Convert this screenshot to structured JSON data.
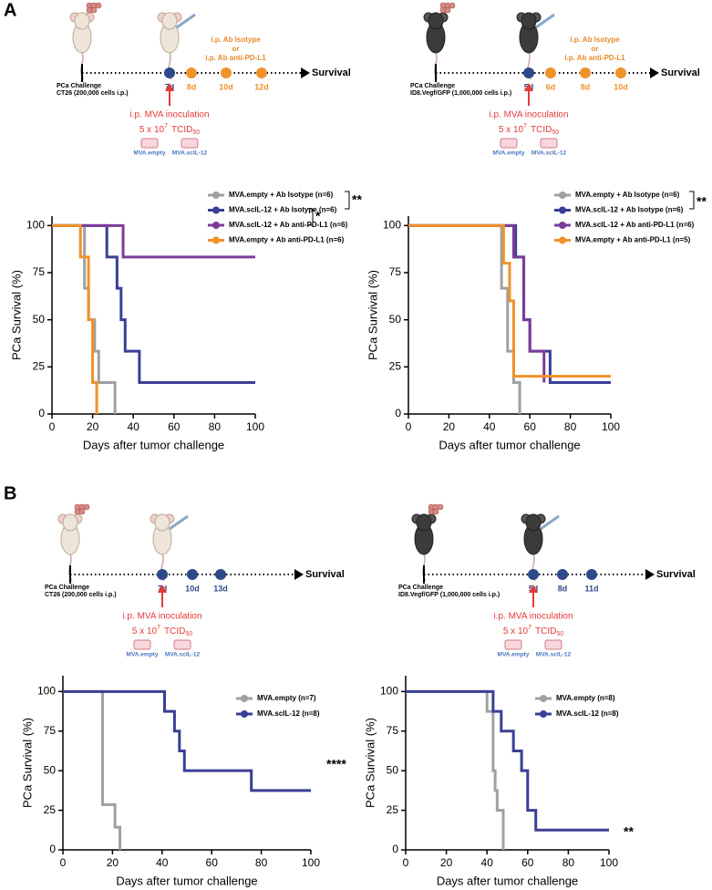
{
  "panels": [
    "A",
    "B"
  ],
  "diagrams": [
    {
      "challenge": [
        "PCa Challenge",
        "CT26 (200,000 cells i.p.)"
      ],
      "end": "Survival",
      "timepoints": [
        {
          "label": "7d",
          "color": "#2e4a8a"
        },
        {
          "label": "8d",
          "color": "#f0922b"
        },
        {
          "label": "10d",
          "color": "#f0922b"
        },
        {
          "label": "12d",
          "color": "#f0922b"
        }
      ],
      "treatment": [
        "i.p. Ab Isotype",
        "or",
        "i.p. Ab anti-PD-L1"
      ],
      "inoculation": {
        "title": "i.p. MVA inoculation",
        "dose": "5 x 10",
        "exp": "7",
        "unit": "TCID",
        "sub": "50"
      },
      "vectors": [
        "MVA.empty",
        "MVA.scIL-12"
      ]
    },
    {
      "challenge": [
        "PCa Challenge",
        "ID8.Vegf/GFP (1,000,000 cells i.p.)"
      ],
      "end": "Survival",
      "timepoints": [
        {
          "label": "5d",
          "color": "#2e4a8a"
        },
        {
          "label": "6d",
          "color": "#f0922b"
        },
        {
          "label": "8d",
          "color": "#f0922b"
        },
        {
          "label": "10d",
          "color": "#f0922b"
        }
      ],
      "treatment": [
        "i.p. Ab Isotype",
        "or",
        "i.p. Ab anti-PD-L1"
      ],
      "inoculation": {
        "title": "i.p. MVA inoculation",
        "dose": "5 x 10",
        "exp": "7",
        "unit": "TCID",
        "sub": "50"
      },
      "vectors": [
        "MVA.empty",
        "MVA.scIL-12"
      ]
    },
    {
      "challenge": [
        "PCa Challenge",
        "CT26 (200,000 cells i.p.)"
      ],
      "end": "Survival",
      "timepoints": [
        {
          "label": "7d",
          "color": "#2e4a8a"
        },
        {
          "label": "10d",
          "color": "#2e4a8a"
        },
        {
          "label": "13d",
          "color": "#2e4a8a"
        }
      ],
      "inoculation": {
        "title": "i.p. MVA inoculation",
        "dose": "5 x 10",
        "exp": "7",
        "unit": "TCID",
        "sub": "50"
      },
      "vectors": [
        "MVA.empty",
        "MVA.scIL-12"
      ]
    },
    {
      "challenge": [
        "PCa Challenge",
        "ID8.Vegf/GFP (1,000,000 cells i.p.)"
      ],
      "end": "Survival",
      "timepoints": [
        {
          "label": "5d",
          "color": "#2e4a8a"
        },
        {
          "label": "8d",
          "color": "#2e4a8a"
        },
        {
          "label": "11d",
          "color": "#2e4a8a"
        }
      ],
      "inoculation": {
        "title": "i.p. MVA inoculation",
        "dose": "5 x 10",
        "exp": "7",
        "unit": "TCID",
        "sub": "50"
      },
      "vectors": [
        "MVA.empty",
        "MVA.scIL-12"
      ]
    }
  ],
  "chart_data": [
    {
      "type": "step",
      "x_label": "Days after tumor challenge",
      "y_label": "PCa Survival (%)",
      "xlim": [
        0,
        100
      ],
      "xticks": [
        0,
        20,
        40,
        60,
        80,
        100
      ],
      "ylim": [
        0,
        105
      ],
      "yticks": [
        0,
        25,
        50,
        75,
        100
      ],
      "annotations": [
        "**",
        "*"
      ],
      "series": [
        {
          "name": "MVA.empty + Ab Isotype (n=6)",
          "color": "#a0a0a0",
          "x": [
            0,
            16,
            18,
            21,
            23,
            31
          ],
          "values": [
            100,
            66.7,
            50,
            33.3,
            16.7,
            0
          ]
        },
        {
          "name": "MVA.scIL-12 + Ab Isotype (n=6)",
          "color": "#3a3f96",
          "x": [
            0,
            27,
            32,
            34,
            36,
            43,
            100
          ],
          "values": [
            100,
            83.3,
            66.7,
            50,
            33.3,
            16.7,
            16.7
          ]
        },
        {
          "name": "MVA.scIL-12 + Ab anti-PD-L1 (n=6)",
          "color": "#7b3c98",
          "x": [
            0,
            35,
            100
          ],
          "values": [
            100,
            83.3,
            83.3
          ]
        },
        {
          "name": "MVA.empty + Ab anti-PD-L1  (n=6)",
          "color": "#f0922b",
          "x": [
            0,
            14,
            18,
            20,
            22
          ],
          "values": [
            100,
            83.3,
            50,
            16.7,
            0
          ]
        }
      ]
    },
    {
      "type": "step",
      "x_label": "Days after tumor challenge",
      "y_label": "PCa Survival (%)",
      "xlim": [
        0,
        100
      ],
      "xticks": [
        0,
        20,
        40,
        60,
        80,
        100
      ],
      "ylim": [
        0,
        105
      ],
      "yticks": [
        0,
        25,
        50,
        75,
        100
      ],
      "annotations": [
        "**"
      ],
      "series": [
        {
          "name": "MVA.empty + Ab Isotype (n=6)",
          "color": "#a0a0a0",
          "x": [
            0,
            46,
            49,
            52,
            55
          ],
          "values": [
            100,
            66.7,
            33.3,
            16.7,
            0
          ]
        },
        {
          "name": "MVA.scIL-12 + Ab Isotype (n=6)",
          "color": "#3a3f96",
          "x": [
            0,
            53,
            57,
            60,
            70,
            100
          ],
          "values": [
            100,
            83.3,
            50,
            33.3,
            16.7,
            16.7
          ]
        },
        {
          "name": "MVA.scIL-12 + Ab anti-PD-L1 (n=6)",
          "color": "#7b3c98",
          "x": [
            0,
            52,
            57,
            60,
            67
          ],
          "values": [
            100,
            83.3,
            50,
            33.3,
            16.7
          ]
        },
        {
          "name": "MVA.empty + Ab anti-PD-L1  (n=5)",
          "color": "#f0922b",
          "x": [
            0,
            47,
            50,
            52,
            100
          ],
          "values": [
            100,
            80,
            60,
            20,
            20
          ]
        }
      ]
    },
    {
      "type": "step",
      "x_label": "Days after tumor challenge",
      "y_label": "PCa Survival (%)",
      "xlim": [
        0,
        100
      ],
      "xticks": [
        0,
        20,
        40,
        60,
        80,
        100
      ],
      "ylim": [
        0,
        110
      ],
      "yticks": [
        0,
        25,
        50,
        75,
        100
      ],
      "annotations": [
        "****"
      ],
      "series": [
        {
          "name": "MVA.empty (n=7)",
          "color": "#a0a0a0",
          "x": [
            0,
            16,
            21,
            23
          ],
          "values": [
            100,
            28.6,
            14.3,
            0
          ]
        },
        {
          "name": "MVA.scIL-12 (n=8)",
          "color": "#3a3f96",
          "x": [
            0,
            41,
            45,
            47,
            49,
            76,
            100
          ],
          "values": [
            100,
            87.5,
            75,
            62.5,
            50,
            37.5,
            37.5
          ]
        }
      ]
    },
    {
      "type": "step",
      "x_label": "Days after tumor challenge",
      "y_label": "PCa Survival (%)",
      "xlim": [
        0,
        100
      ],
      "xticks": [
        0,
        20,
        40,
        60,
        80,
        100
      ],
      "ylim": [
        0,
        110
      ],
      "yticks": [
        0,
        25,
        50,
        75,
        100
      ],
      "annotations": [
        "**"
      ],
      "series": [
        {
          "name": "MVA.empty (n=8)",
          "color": "#a0a0a0",
          "x": [
            0,
            40,
            43,
            44,
            45,
            48
          ],
          "values": [
            100,
            87.5,
            50,
            37.5,
            25,
            0
          ]
        },
        {
          "name": "MVA.scIL-12 (n=8)",
          "color": "#3a3f96",
          "x": [
            0,
            43,
            47,
            53,
            57,
            60,
            64,
            100
          ],
          "values": [
            100,
            87.5,
            75,
            62.5,
            50,
            25,
            12.5,
            12.5
          ]
        }
      ]
    }
  ]
}
